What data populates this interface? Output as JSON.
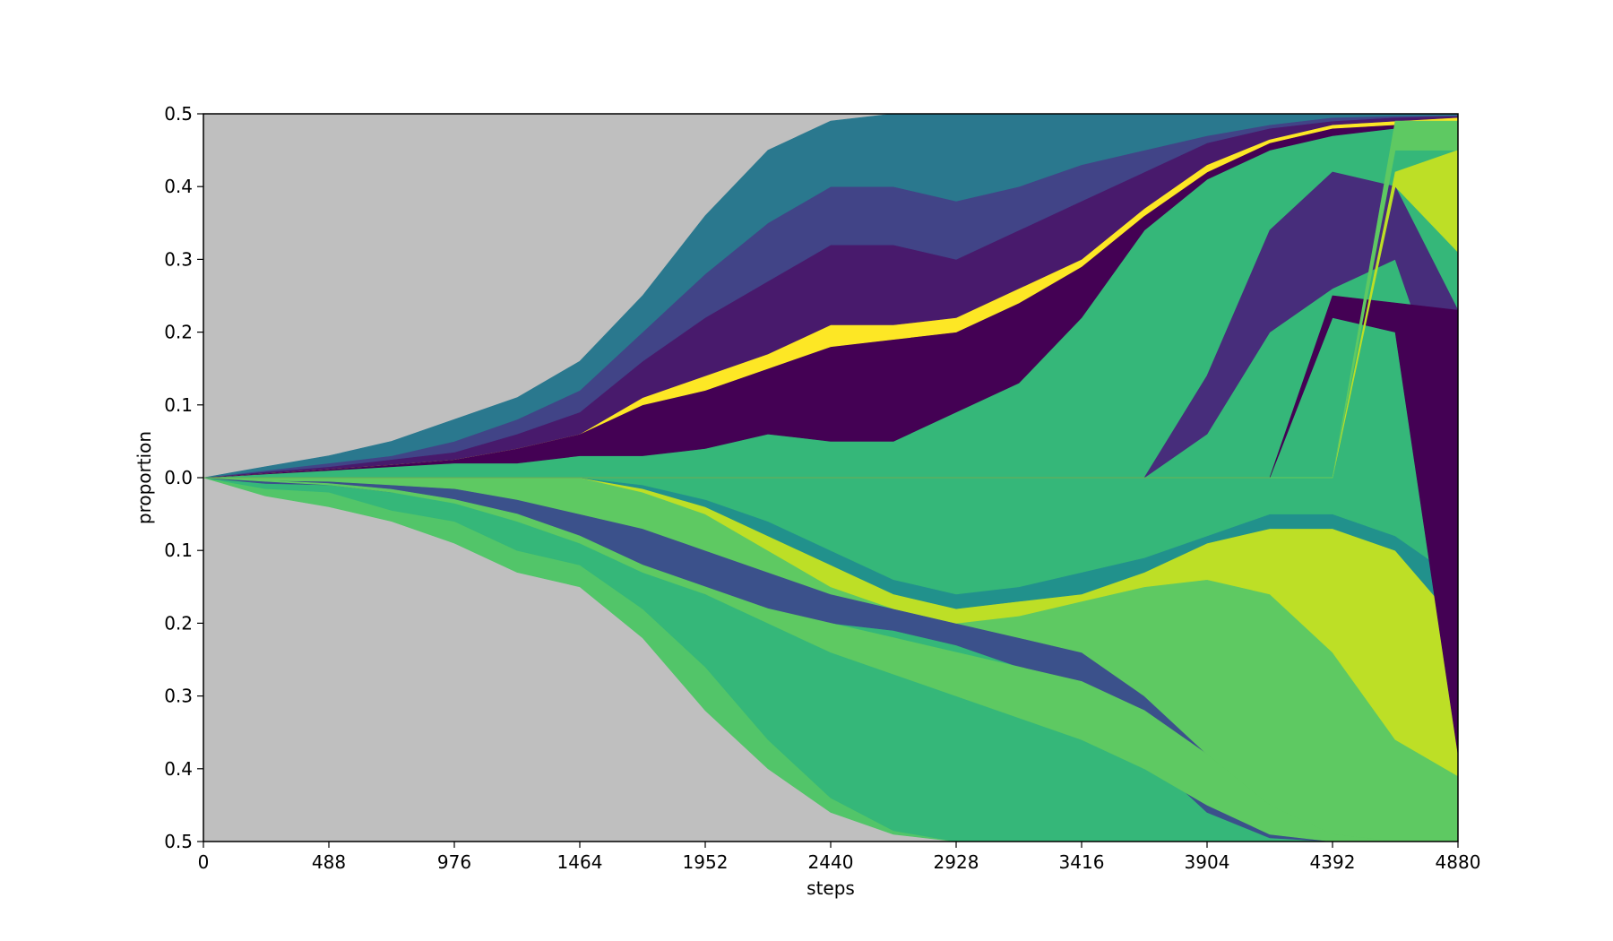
{
  "chart_data": {
    "type": "area",
    "xlabel": "steps",
    "ylabel": "proportion",
    "xlim": [
      0,
      4880
    ],
    "ylim": [
      -0.5,
      0.5
    ],
    "x_ticks": [
      {
        "value": 0,
        "label": "0"
      },
      {
        "value": 488,
        "label": "488"
      },
      {
        "value": 976,
        "label": "976"
      },
      {
        "value": 1464,
        "label": "1464"
      },
      {
        "value": 1952,
        "label": "1952"
      },
      {
        "value": 2440,
        "label": "2440"
      },
      {
        "value": 2928,
        "label": "2928"
      },
      {
        "value": 3416,
        "label": "3416"
      },
      {
        "value": 3904,
        "label": "3904"
      },
      {
        "value": 4392,
        "label": "4392"
      },
      {
        "value": 4880,
        "label": "4880"
      }
    ],
    "y_ticks": [
      {
        "value": 0.5,
        "label": "0.5"
      },
      {
        "value": 0.4,
        "label": "0.4"
      },
      {
        "value": 0.3,
        "label": "0.3"
      },
      {
        "value": 0.2,
        "label": "0.2"
      },
      {
        "value": 0.1,
        "label": "0.1"
      },
      {
        "value": 0.0,
        "label": "0.0"
      },
      {
        "value": -0.1,
        "label": "0.1"
      },
      {
        "value": -0.2,
        "label": "0.2"
      },
      {
        "value": -0.3,
        "label": "0.3"
      },
      {
        "value": -0.4,
        "label": "0.4"
      },
      {
        "value": -0.5,
        "label": "0.5"
      }
    ],
    "background_color": "#bfbfbf",
    "x": [
      0,
      240,
      488,
      732,
      976,
      1220,
      1464,
      1708,
      1952,
      2196,
      2440,
      2684,
      2928,
      3172,
      3416,
      3660,
      3904,
      4148,
      4392,
      4636,
      4880
    ],
    "series": [
      {
        "color": "#52c569",
        "lower": [
          0,
          -0.025,
          -0.04,
          -0.06,
          -0.09,
          -0.13,
          -0.15,
          -0.22,
          -0.32,
          -0.4,
          -0.46,
          -0.49,
          -0.5,
          -0.5,
          -0.5,
          -0.5,
          -0.5,
          -0.5,
          -0.5,
          -0.5,
          -0.5
        ],
        "upper": [
          0,
          -0.015,
          -0.02,
          -0.045,
          -0.06,
          -0.1,
          -0.12,
          -0.18,
          -0.26,
          -0.36,
          -0.44,
          -0.485,
          -0.5,
          -0.5,
          -0.5,
          -0.5,
          -0.5,
          -0.5,
          -0.5,
          -0.5,
          -0.5
        ]
      },
      {
        "color": "#35b779",
        "lower": [
          0,
          -0.015,
          -0.02,
          -0.045,
          -0.06,
          -0.1,
          -0.12,
          -0.18,
          -0.26,
          -0.36,
          -0.44,
          -0.485,
          -0.5,
          -0.5,
          -0.5,
          -0.5,
          -0.5,
          -0.5,
          -0.5,
          -0.5,
          -0.5
        ],
        "upper": [
          0,
          -0.008,
          -0.01,
          -0.02,
          -0.03,
          -0.05,
          -0.08,
          -0.12,
          -0.16,
          -0.19,
          -0.2,
          -0.21,
          -0.23,
          -0.26,
          -0.3,
          -0.38,
          -0.46,
          -0.495,
          -0.5,
          -0.5,
          -0.5
        ]
      },
      {
        "color": "#3b518b",
        "lower": [
          0,
          -0.008,
          -0.01,
          -0.02,
          -0.03,
          -0.05,
          -0.08,
          -0.12,
          -0.16,
          -0.19,
          -0.2,
          -0.21,
          -0.23,
          -0.26,
          -0.3,
          -0.38,
          -0.46,
          -0.495,
          -0.5,
          -0.5,
          -0.5
        ],
        "upper": [
          0,
          -0.004,
          -0.005,
          -0.01,
          -0.015,
          -0.03,
          -0.05,
          -0.07,
          -0.1,
          -0.13,
          -0.16,
          -0.18,
          -0.2,
          -0.22,
          -0.24,
          -0.3,
          -0.38,
          -0.46,
          -0.49,
          -0.5,
          -0.5
        ]
      },
      {
        "color": "#5ec962",
        "lower": [
          0,
          -0.004,
          -0.005,
          -0.01,
          -0.015,
          -0.03,
          -0.05,
          -0.07,
          -0.1,
          -0.13,
          -0.16,
          -0.18,
          -0.2,
          -0.22,
          -0.24,
          -0.3,
          -0.38,
          -0.46,
          -0.49,
          -0.5,
          -0.5
        ],
        "upper": [
          0,
          0,
          0,
          0,
          0,
          0,
          0,
          -0.02,
          -0.05,
          -0.1,
          -0.15,
          -0.18,
          -0.2,
          -0.19,
          -0.17,
          -0.15,
          -0.14,
          -0.16,
          -0.24,
          -0.36,
          -0.41
        ]
      },
      {
        "color": "#bddf26",
        "lower": [
          0,
          0,
          0,
          0,
          0,
          0,
          0,
          -0.02,
          -0.05,
          -0.1,
          -0.15,
          -0.18,
          -0.2,
          -0.19,
          -0.17,
          -0.15,
          -0.14,
          -0.16,
          -0.24,
          -0.36,
          -0.41
        ],
        "upper": [
          0,
          0,
          0,
          0,
          0,
          0,
          0,
          -0.015,
          -0.04,
          -0.08,
          -0.12,
          -0.16,
          -0.18,
          -0.17,
          -0.16,
          -0.13,
          -0.09,
          -0.07,
          -0.07,
          -0.1,
          -0.2
        ]
      },
      {
        "color": "#21918c",
        "lower": [
          0,
          0,
          0,
          0,
          0,
          0,
          0,
          -0.015,
          -0.04,
          -0.08,
          -0.12,
          -0.16,
          -0.18,
          -0.17,
          -0.16,
          -0.13,
          -0.09,
          -0.07,
          -0.07,
          -0.1,
          -0.2
        ],
        "upper": [
          0,
          0,
          0,
          0,
          0,
          0,
          0,
          -0.01,
          -0.03,
          -0.06,
          -0.1,
          -0.14,
          -0.16,
          -0.15,
          -0.13,
          -0.11,
          -0.08,
          -0.05,
          -0.05,
          -0.08,
          -0.14
        ]
      },
      {
        "color": "#35b779",
        "lower": [
          0,
          0,
          0,
          0,
          0,
          0,
          0,
          -0.01,
          -0.03,
          -0.06,
          -0.1,
          -0.14,
          -0.16,
          -0.15,
          -0.13,
          -0.11,
          -0.08,
          -0.05,
          -0.05,
          -0.08,
          -0.14
        ],
        "upper": [
          0,
          0.005,
          0.01,
          0.015,
          0.02,
          0.02,
          0.03,
          0.03,
          0.04,
          0.06,
          0.05,
          0.05,
          0.09,
          0.13,
          0.22,
          0.34,
          0.41,
          0.45,
          0.47,
          0.48,
          0.48
        ]
      },
      {
        "color": "#440154",
        "lower": [
          0,
          0.005,
          0.01,
          0.015,
          0.02,
          0.02,
          0.03,
          0.03,
          0.04,
          0.06,
          0.05,
          0.05,
          0.09,
          0.13,
          0.22,
          0.34,
          0.41,
          0.45,
          0.47,
          0.48,
          0.48
        ],
        "upper": [
          0,
          0.006,
          0.012,
          0.018,
          0.025,
          0.04,
          0.06,
          0.1,
          0.12,
          0.15,
          0.18,
          0.19,
          0.2,
          0.24,
          0.29,
          0.36,
          0.42,
          0.46,
          0.48,
          0.485,
          0.49
        ]
      },
      {
        "color": "#fde725",
        "lower": [
          0,
          0.006,
          0.012,
          0.018,
          0.025,
          0.04,
          0.06,
          0.1,
          0.12,
          0.15,
          0.18,
          0.19,
          0.2,
          0.24,
          0.29,
          0.36,
          0.42,
          0.46,
          0.48,
          0.485,
          0.49
        ],
        "upper": [
          0,
          0.006,
          0.012,
          0.018,
          0.025,
          0.04,
          0.06,
          0.11,
          0.14,
          0.17,
          0.21,
          0.21,
          0.22,
          0.26,
          0.3,
          0.37,
          0.43,
          0.465,
          0.485,
          0.49,
          0.495
        ]
      },
      {
        "color": "#481a6c",
        "lower": [
          0,
          0.006,
          0.012,
          0.018,
          0.025,
          0.04,
          0.06,
          0.11,
          0.14,
          0.17,
          0.21,
          0.21,
          0.22,
          0.26,
          0.3,
          0.37,
          0.43,
          0.465,
          0.485,
          0.49,
          0.495
        ],
        "upper": [
          0,
          0.008,
          0.015,
          0.025,
          0.035,
          0.06,
          0.09,
          0.16,
          0.22,
          0.27,
          0.32,
          0.32,
          0.3,
          0.34,
          0.38,
          0.42,
          0.46,
          0.48,
          0.49,
          0.495,
          0.497
        ]
      },
      {
        "color": "#414487",
        "lower": [
          0,
          0.008,
          0.015,
          0.025,
          0.035,
          0.06,
          0.09,
          0.16,
          0.22,
          0.27,
          0.32,
          0.32,
          0.3,
          0.34,
          0.38,
          0.42,
          0.46,
          0.48,
          0.49,
          0.495,
          0.497
        ],
        "upper": [
          0,
          0.01,
          0.02,
          0.03,
          0.05,
          0.08,
          0.12,
          0.2,
          0.28,
          0.35,
          0.4,
          0.4,
          0.38,
          0.4,
          0.43,
          0.45,
          0.47,
          0.485,
          0.495,
          0.497,
          0.498
        ]
      },
      {
        "color": "#2a788e",
        "lower": [
          0,
          0.01,
          0.02,
          0.03,
          0.05,
          0.08,
          0.12,
          0.2,
          0.28,
          0.35,
          0.4,
          0.4,
          0.38,
          0.4,
          0.43,
          0.45,
          0.47,
          0.485,
          0.495,
          0.497,
          0.498
        ],
        "upper": [
          0,
          0.015,
          0.03,
          0.05,
          0.08,
          0.11,
          0.16,
          0.25,
          0.36,
          0.45,
          0.49,
          0.5,
          0.5,
          0.5,
          0.5,
          0.5,
          0.5,
          0.5,
          0.5,
          0.5,
          0.5
        ]
      },
      {
        "color": "#5ec962",
        "lower": [
          0,
          -0.005,
          -0.01,
          -0.02,
          -0.035,
          -0.06,
          -0.09,
          -0.13,
          -0.16,
          -0.2,
          -0.24,
          -0.27,
          -0.3,
          -0.33,
          -0.36,
          -0.4,
          -0.45,
          -0.49,
          -0.5,
          -0.5,
          -0.5
        ],
        "upper": [
          0,
          -0.004,
          -0.008,
          -0.016,
          -0.03,
          -0.05,
          -0.08,
          -0.12,
          -0.15,
          -0.18,
          -0.2,
          -0.22,
          -0.24,
          -0.26,
          -0.28,
          -0.32,
          -0.38,
          -0.45,
          -0.49,
          -0.5,
          -0.5
        ]
      },
      {
        "color": "#472d7b",
        "lower": [
          0,
          0,
          0,
          0,
          0,
          0,
          0,
          0,
          0,
          0,
          0,
          0,
          0,
          0,
          0,
          0,
          0.06,
          0.2,
          0.26,
          0.3,
          0.05
        ],
        "upper": [
          0,
          0,
          0,
          0,
          0,
          0,
          0,
          0,
          0,
          0,
          0,
          0,
          0,
          0,
          0,
          0,
          0.14,
          0.34,
          0.42,
          0.4,
          0.23
        ]
      },
      {
        "color": "#440154",
        "lower": [
          0,
          0,
          0,
          0,
          0,
          0,
          0,
          0,
          0,
          0,
          0,
          0,
          0,
          0,
          0,
          0,
          0,
          0,
          0.22,
          0.2,
          -0.38
        ],
        "upper": [
          0,
          0,
          0,
          0,
          0,
          0,
          0,
          0,
          0,
          0,
          0,
          0,
          0,
          0,
          0,
          0,
          0,
          0,
          0.25,
          0.24,
          0.23
        ]
      },
      {
        "color": "#bddf26",
        "lower": [
          0,
          0,
          0,
          0,
          0,
          0,
          0,
          0,
          0,
          0,
          0,
          0,
          0,
          0,
          0,
          0,
          0,
          0,
          0,
          0.4,
          0.31
        ],
        "upper": [
          0,
          0,
          0,
          0,
          0,
          0,
          0,
          0,
          0,
          0,
          0,
          0,
          0,
          0,
          0,
          0,
          0,
          0,
          0,
          0.42,
          0.45
        ]
      },
      {
        "color": "#5ec962",
        "lower": [
          0,
          0,
          0,
          0,
          0,
          0,
          0,
          0,
          0,
          0,
          0,
          0,
          0,
          0,
          0,
          0,
          0,
          0,
          0,
          0.45,
          0.45
        ],
        "upper": [
          0,
          0,
          0,
          0,
          0,
          0,
          0,
          0,
          0,
          0,
          0,
          0,
          0,
          0,
          0,
          0,
          0,
          0,
          0,
          0.49,
          0.49
        ]
      }
    ]
  }
}
